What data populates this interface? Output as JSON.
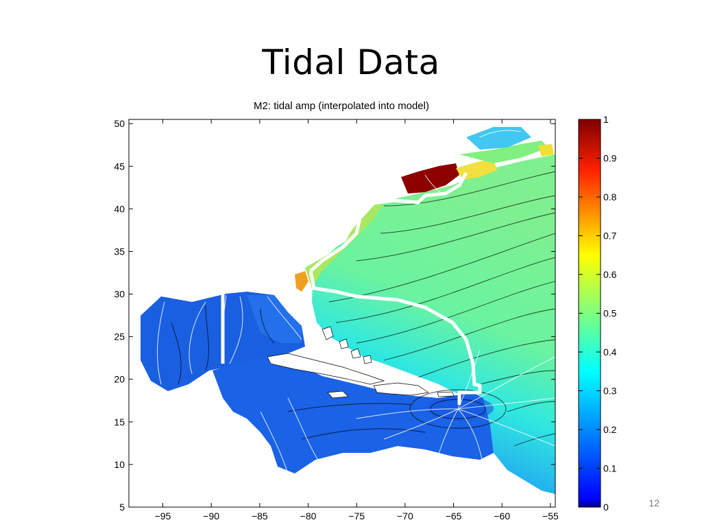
{
  "slide": {
    "title": "Tidal Data",
    "page_number": "12"
  },
  "map": {
    "title": "M2: tidal amp (interpolated into model)",
    "x_ticks": [
      -95,
      -90,
      -85,
      -80,
      -75,
      -70,
      -65,
      -60,
      -55
    ],
    "y_ticks": [
      5,
      10,
      15,
      20,
      25,
      30,
      35,
      40,
      45,
      50
    ],
    "x_range": [
      -98.5,
      -54.5
    ],
    "y_range": [
      5,
      50.5
    ]
  },
  "colorbar": {
    "ticks": [
      0,
      0.1,
      0.2,
      0.3,
      0.4,
      0.5,
      0.6,
      0.7,
      0.8,
      0.9,
      1
    ],
    "range": [
      0,
      1
    ],
    "colormap": "jet",
    "colors": [
      "#00007f",
      "#0000ff",
      "#007fff",
      "#00ffff",
      "#7fff7f",
      "#ffff00",
      "#ff7f00",
      "#ff0000",
      "#7f0000"
    ]
  }
}
